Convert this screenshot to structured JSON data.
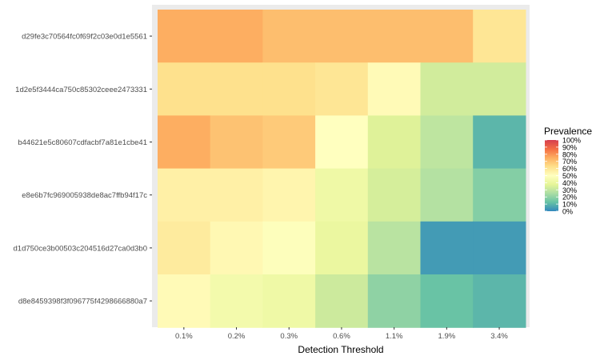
{
  "chart_data": {
    "type": "heatmap",
    "xlabel": "Detection Threshold",
    "ylabel": "",
    "x_categories": [
      "0.1%",
      "0.2%",
      "0.3%",
      "0.6%",
      "1.1%",
      "1.9%",
      "3.4%"
    ],
    "y_categories": [
      "d29fe3c70564fc0f69f2c03e0d1e5561",
      "1d2e5f3444ca750c85302ceee2473331",
      "b44621e5c80607cdfacbf7a81e1cbe41",
      "e8e6b7fc969005938de8ac7ffb94f17c",
      "d1d750ce3b00503c204516d27ca0d3b0",
      "d8e8459398f3f096775f4298666880a7"
    ],
    "values": [
      [
        75,
        75,
        71,
        71,
        71,
        71,
        60
      ],
      [
        62,
        62,
        62,
        60,
        52,
        33,
        33
      ],
      [
        75,
        70,
        68,
        50,
        36,
        29,
        10
      ],
      [
        56,
        56,
        54,
        42,
        34,
        27,
        18
      ],
      [
        58,
        53,
        49,
        40,
        28,
        4,
        4
      ],
      [
        52,
        44,
        42,
        32,
        20,
        13,
        10
      ]
    ],
    "legend": {
      "title": "Prevalence",
      "position": "right",
      "ticks": [
        "100%",
        "90%",
        "80%",
        "70%",
        "60%",
        "50%",
        "40%",
        "30%",
        "20%",
        "10%",
        "0%"
      ],
      "colors": [
        "#D53E4F",
        "#F46D43",
        "#FDAE61",
        "#FEE08B",
        "#FFFFBF",
        "#E6F598",
        "#ABDDA4",
        "#66C2A5",
        "#3288BD"
      ]
    },
    "panel_background": "#EBEBEB",
    "grid": true
  }
}
